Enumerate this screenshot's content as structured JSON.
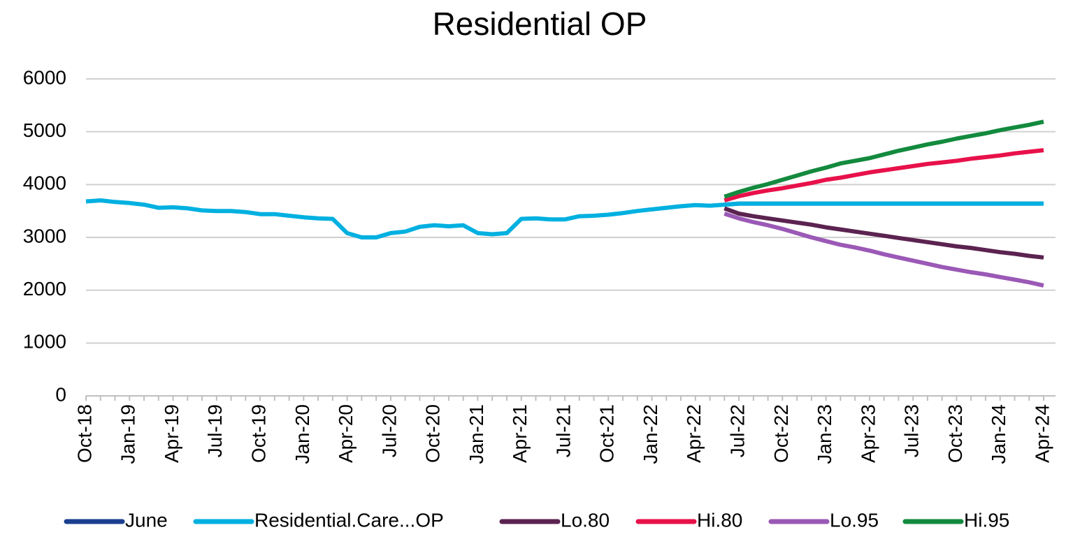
{
  "chart_data": {
    "type": "line",
    "title": "Residential OP",
    "categories": [
      "Oct-18",
      null,
      null,
      "Jan-19",
      null,
      null,
      "Apr-19",
      null,
      null,
      "Jul-19",
      null,
      null,
      "Oct-19",
      null,
      null,
      "Jan-20",
      null,
      null,
      "Apr-20",
      null,
      null,
      "Jul-20",
      null,
      null,
      "Oct-20",
      null,
      null,
      "Jan-21",
      null,
      null,
      "Apr-21",
      null,
      null,
      "Jul-21",
      null,
      null,
      "Oct-21",
      null,
      null,
      "Jan-22",
      null,
      null,
      "Apr-22",
      null,
      null,
      "Jul-22",
      null,
      null,
      "Oct-22",
      null,
      null,
      "Jan-23",
      null,
      null,
      "Apr-23",
      null,
      null,
      "Jul-23",
      null,
      null,
      "Oct-23",
      null,
      null,
      "Jan-24",
      null,
      null,
      "Apr-24"
    ],
    "series": [
      {
        "name": "June",
        "color": "#1b3f8f",
        "values": [
          null,
          null,
          null,
          null,
          null,
          null,
          null,
          null,
          null,
          null,
          null,
          null,
          null,
          null,
          null,
          null,
          null,
          null,
          null,
          null,
          null,
          null,
          null,
          null,
          null,
          null,
          null,
          null,
          null,
          null,
          null,
          null,
          null,
          null,
          null,
          null,
          null,
          null,
          null,
          null,
          null,
          null,
          null,
          null,
          3620,
          3640,
          3640,
          3640,
          3640,
          3640,
          3640,
          3640,
          3640,
          3640,
          3640,
          3640,
          3640,
          3640,
          3640,
          3640,
          3640,
          3640,
          3640,
          3640,
          3640,
          3640,
          3640
        ]
      },
      {
        "name": "Residential.Care...OP",
        "color": "#00b0e0",
        "values": [
          3680,
          3700,
          3670,
          3650,
          3620,
          3560,
          3570,
          3550,
          3510,
          3500,
          3500,
          3480,
          3440,
          3440,
          3410,
          3380,
          3360,
          3350,
          3080,
          3000,
          3000,
          3080,
          3110,
          3200,
          3230,
          3210,
          3230,
          3080,
          3060,
          3080,
          3350,
          3360,
          3340,
          3340,
          3400,
          3410,
          3430,
          3460,
          3500,
          3530,
          3560,
          3590,
          3610,
          3600,
          3620,
          3640,
          3640,
          3640,
          3640,
          3640,
          3640,
          3640,
          3640,
          3640,
          3640,
          3640,
          3640,
          3640,
          3640,
          3640,
          3640,
          3640,
          3640,
          3640,
          3640,
          3640,
          3640
        ]
      },
      {
        "name": "Lo.80",
        "color": "#5b2350",
        "values": [
          null,
          null,
          null,
          null,
          null,
          null,
          null,
          null,
          null,
          null,
          null,
          null,
          null,
          null,
          null,
          null,
          null,
          null,
          null,
          null,
          null,
          null,
          null,
          null,
          null,
          null,
          null,
          null,
          null,
          null,
          null,
          null,
          null,
          null,
          null,
          null,
          null,
          null,
          null,
          null,
          null,
          null,
          null,
          null,
          3550,
          3450,
          3400,
          3360,
          3320,
          3280,
          3240,
          3190,
          3150,
          3110,
          3070,
          3030,
          2990,
          2950,
          2910,
          2870,
          2830,
          2800,
          2760,
          2720,
          2690,
          2650,
          2620
        ]
      },
      {
        "name": "Hi.80",
        "color": "#e8114a",
        "values": [
          null,
          null,
          null,
          null,
          null,
          null,
          null,
          null,
          null,
          null,
          null,
          null,
          null,
          null,
          null,
          null,
          null,
          null,
          null,
          null,
          null,
          null,
          null,
          null,
          null,
          null,
          null,
          null,
          null,
          null,
          null,
          null,
          null,
          null,
          null,
          null,
          null,
          null,
          null,
          null,
          null,
          null,
          null,
          null,
          3700,
          3780,
          3840,
          3890,
          3930,
          3980,
          4030,
          4090,
          4130,
          4180,
          4230,
          4270,
          4310,
          4350,
          4390,
          4420,
          4450,
          4490,
          4520,
          4550,
          4590,
          4620,
          4650
        ]
      },
      {
        "name": "Lo.95",
        "color": "#9b59b6",
        "values": [
          null,
          null,
          null,
          null,
          null,
          null,
          null,
          null,
          null,
          null,
          null,
          null,
          null,
          null,
          null,
          null,
          null,
          null,
          null,
          null,
          null,
          null,
          null,
          null,
          null,
          null,
          null,
          null,
          null,
          null,
          null,
          null,
          null,
          null,
          null,
          null,
          null,
          null,
          null,
          null,
          null,
          null,
          null,
          null,
          3450,
          3360,
          3290,
          3230,
          3160,
          3080,
          3000,
          2930,
          2860,
          2810,
          2750,
          2680,
          2620,
          2560,
          2500,
          2440,
          2390,
          2340,
          2300,
          2250,
          2200,
          2150,
          2090
        ]
      },
      {
        "name": "Hi.95",
        "color": "#138a3e",
        "values": [
          null,
          null,
          null,
          null,
          null,
          null,
          null,
          null,
          null,
          null,
          null,
          null,
          null,
          null,
          null,
          null,
          null,
          null,
          null,
          null,
          null,
          null,
          null,
          null,
          null,
          null,
          null,
          null,
          null,
          null,
          null,
          null,
          null,
          null,
          null,
          null,
          null,
          null,
          null,
          null,
          null,
          null,
          null,
          null,
          3770,
          3860,
          3940,
          4010,
          4090,
          4170,
          4250,
          4320,
          4400,
          4450,
          4500,
          4570,
          4640,
          4700,
          4760,
          4810,
          4870,
          4920,
          4970,
          5030,
          5080,
          5130,
          5190
        ]
      }
    ],
    "ylim": [
      0,
      6000
    ],
    "yticks": [
      0,
      1000,
      2000,
      3000,
      4000,
      5000,
      6000
    ],
    "grid": true,
    "legend": "bottom"
  }
}
